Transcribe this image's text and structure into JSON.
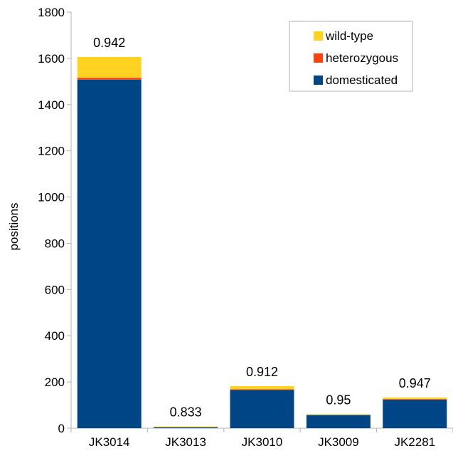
{
  "chart_data": {
    "type": "bar",
    "stacked": true,
    "title": "",
    "xlabel": "",
    "ylabel": "positions",
    "ylim": [
      0,
      1800
    ],
    "yticks": [
      0,
      200,
      400,
      600,
      800,
      1000,
      1200,
      1400,
      1600,
      1800
    ],
    "grid": false,
    "legend_position": "top-right",
    "categories": [
      "JK3014",
      "JK3013",
      "JK3010",
      "JK3009",
      "JK2281"
    ],
    "series": [
      {
        "name": "domesticated",
        "color": "#004586",
        "values": [
          1508,
          6,
          166,
          57,
          124
        ]
      },
      {
        "name": "heterozygous",
        "color": "#ff420e",
        "values": [
          8,
          0,
          2,
          0,
          2
        ]
      },
      {
        "name": "wild-type",
        "color": "#ffd320",
        "values": [
          90,
          1,
          14,
          3,
          7
        ]
      }
    ],
    "legend_order": [
      "wild-type",
      "heterozygous",
      "domesticated"
    ],
    "bar_labels": [
      "0.942",
      "0.833",
      "0.912",
      "0.95",
      "0.947"
    ]
  }
}
